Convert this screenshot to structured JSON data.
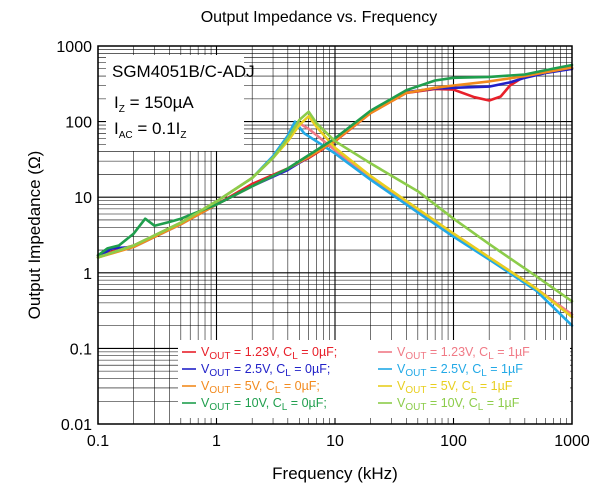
{
  "chart_data": {
    "type": "line",
    "title": "Output Impedance vs. Frequency",
    "xlabel": "Frequency (kHz)",
    "ylabel": "Output Impedance (Ω)",
    "xscale": "log",
    "yscale": "log",
    "xlim": [
      0.1,
      1000
    ],
    "ylim": [
      0.01,
      1000
    ],
    "x_ticks": [
      "0.1",
      "1",
      "10",
      "100",
      "1000"
    ],
    "y_ticks": [
      "0.01",
      "0.1",
      "1",
      "10",
      "100",
      "1000"
    ],
    "grid": true,
    "legend_position": "bottom-right",
    "annotations": {
      "device": "SGM4051B/C-ADJ",
      "iz_main": "I",
      "iz_sub": "Z",
      "iz_value": " = 150µA",
      "iac_main": "I",
      "iac_sub": "AC",
      "iac_value": " = 0.1I",
      "iac_value_sub": "Z"
    },
    "series": [
      {
        "name": "VOUT = 1.23V, CL = 0µF",
        "vout": "1.23V",
        "cl": "0µF",
        "color": "#e8202a",
        "x": [
          0.1,
          0.13,
          0.2,
          0.5,
          1,
          2,
          4,
          6,
          10,
          20,
          40,
          70,
          100,
          150,
          200,
          250,
          300,
          400,
          600,
          1000
        ],
        "y": [
          1.7,
          1.9,
          2.3,
          4.5,
          8,
          15,
          24,
          33,
          55,
          130,
          240,
          270,
          265,
          210,
          190,
          215,
          300,
          400,
          450,
          500
        ]
      },
      {
        "name": "VOUT = 1.23V, CL = 1µF",
        "vout": "1.23V",
        "cl": "1µF",
        "color": "#f07a86",
        "x": [
          0.1,
          0.2,
          0.5,
          1,
          2,
          3,
          4,
          5,
          6,
          10,
          20,
          50,
          100,
          200,
          500,
          1000
        ],
        "y": [
          1.6,
          2.3,
          4.6,
          8.8,
          18,
          33,
          58,
          95,
          80,
          42,
          18,
          6.8,
          3.3,
          1.6,
          0.62,
          0.28
        ]
      },
      {
        "name": "VOUT = 2.5V, CL = 0µF",
        "vout": "2.5V",
        "cl": "0µF",
        "color": "#2121c8",
        "x": [
          0.1,
          0.13,
          0.2,
          0.5,
          1,
          2,
          4,
          6,
          10,
          20,
          40,
          70,
          100,
          200,
          300,
          400,
          600,
          1000
        ],
        "y": [
          1.6,
          2.1,
          2.2,
          4.4,
          8,
          14,
          23,
          34,
          57,
          135,
          245,
          275,
          280,
          290,
          330,
          380,
          440,
          500
        ]
      },
      {
        "name": "VOUT = 2.5V, CL = 1µF",
        "vout": "2.5V",
        "cl": "1µF",
        "color": "#22a9e6",
        "x": [
          0.1,
          0.2,
          0.5,
          1,
          2,
          3,
          4,
          4.6,
          5.5,
          10,
          20,
          50,
          100,
          200,
          500,
          1000
        ],
        "y": [
          1.6,
          2.3,
          4.6,
          8.8,
          18,
          35,
          65,
          100,
          70,
          38,
          17,
          6.3,
          3,
          1.5,
          0.58,
          0.2
        ]
      },
      {
        "name": "VOUT = 5V, CL = 0µF",
        "vout": "5V",
        "cl": "0µF",
        "color": "#f28a1e",
        "x": [
          0.1,
          0.13,
          0.2,
          0.5,
          1,
          2,
          4,
          6,
          10,
          20,
          40,
          70,
          100,
          200,
          400,
          600,
          1000
        ],
        "y": [
          1.6,
          1.8,
          2.2,
          4.4,
          8,
          14,
          24,
          34,
          56,
          130,
          240,
          280,
          300,
          340,
          400,
          450,
          520
        ]
      },
      {
        "name": "VOUT = 5V, CL = 1µF",
        "vout": "5V",
        "cl": "1µF",
        "color": "#e8cf1f",
        "x": [
          0.1,
          0.2,
          0.5,
          1,
          2,
          3,
          4,
          5,
          6,
          7,
          10,
          20,
          50,
          100,
          200,
          500,
          1000
        ],
        "y": [
          1.6,
          2.3,
          4.6,
          8.8,
          18,
          33,
          55,
          90,
          118,
          85,
          45,
          19,
          7,
          3.3,
          1.6,
          0.62,
          0.26
        ]
      },
      {
        "name": "VOUT = 10V, CL = 0µF",
        "vout": "10V",
        "cl": "0µF",
        "color": "#1f9e4d",
        "x": [
          0.1,
          0.12,
          0.15,
          0.2,
          0.25,
          0.3,
          0.4,
          0.5,
          1,
          2,
          4,
          6,
          10,
          20,
          40,
          70,
          100,
          200,
          400,
          600,
          1000
        ],
        "y": [
          1.7,
          2.1,
          2.3,
          3.3,
          5.2,
          4.2,
          4.7,
          5.2,
          8,
          14,
          24,
          36,
          60,
          140,
          260,
          350,
          380,
          390,
          420,
          480,
          560
        ]
      },
      {
        "name": "VOUT = 10V, CL = 1µF",
        "vout": "10V",
        "cl": "1µF",
        "color": "#8ccc4a",
        "x": [
          0.1,
          0.2,
          0.5,
          1,
          2,
          3,
          4,
          5,
          6,
          7,
          10,
          20,
          50,
          100,
          200,
          500,
          1000
        ],
        "y": [
          1.6,
          2.3,
          4.6,
          8.8,
          18,
          33,
          60,
          105,
          135,
          95,
          55,
          28,
          12,
          5.2,
          2.4,
          0.9,
          0.42
        ]
      }
    ]
  }
}
